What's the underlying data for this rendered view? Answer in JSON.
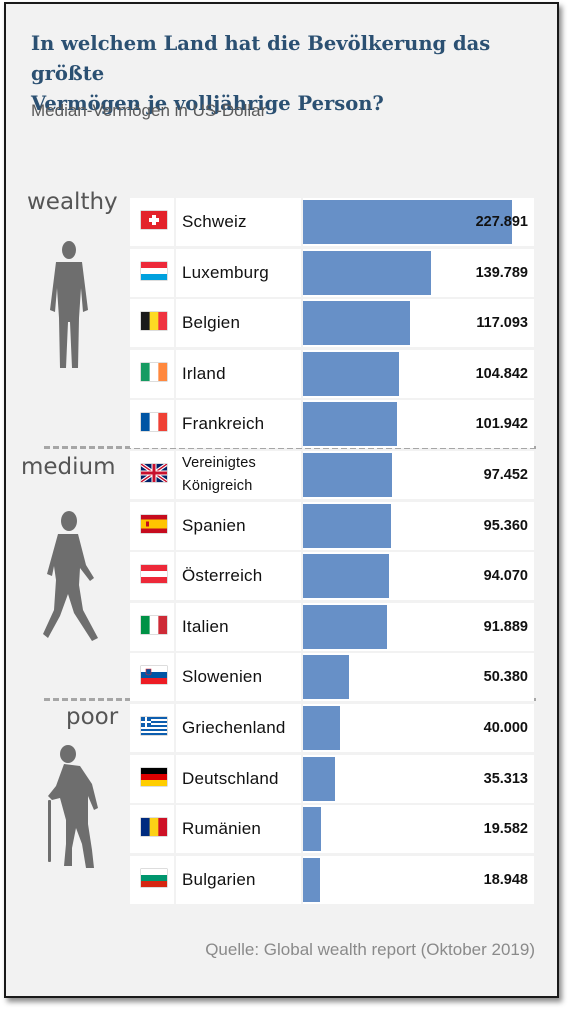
{
  "header": {
    "title_line1": "In welchem Land hat die Bevölkerung das größte",
    "title_line2": "Vermögen je volljährige Person?",
    "subtitle": "Median-Vermögen in US-Dollar"
  },
  "tiers": [
    "wealthy",
    "medium",
    "poor"
  ],
  "source": "Quelle: Global wealth report (Oktober 2019)",
  "chart_data": {
    "type": "bar",
    "orientation": "horizontal",
    "title": "In welchem Land hat die Bevölkerung das größte Vermögen je volljährige Person?",
    "subtitle": "Median-Vermögen in US-Dollar",
    "categories": [
      "Schweiz",
      "Luxemburg",
      "Belgien",
      "Irland",
      "Frankreich",
      "Vereinigtes Königreich",
      "Spanien",
      "Österreich",
      "Italien",
      "Slowenien",
      "Griechenland",
      "Deutschland",
      "Rumänien",
      "Bulgarien"
    ],
    "values": [
      227891,
      139789,
      117093,
      104842,
      101942,
      97452,
      95360,
      94070,
      91889,
      50380,
      40000,
      35313,
      19582,
      18948
    ],
    "value_labels": [
      "227.891",
      "139.789",
      "117.093",
      "104.842",
      "101.942",
      "97.452",
      "95.360",
      "94.070",
      "91.889",
      "50.380",
      "40.000",
      "35.313",
      "19.582",
      "18.948"
    ],
    "flags": [
      "ch",
      "lu",
      "be",
      "ie",
      "fr",
      "gb",
      "es",
      "at",
      "it",
      "si",
      "gr",
      "de",
      "ro",
      "bg"
    ],
    "groups": [
      {
        "label": "wealthy",
        "from": 0,
        "to": 4
      },
      {
        "label": "medium",
        "from": 5,
        "to": 9
      },
      {
        "label": "poor",
        "from": 10,
        "to": 13
      }
    ],
    "xlim": [
      0,
      227891
    ],
    "bar_color": "#6790c7",
    "grid": false
  }
}
